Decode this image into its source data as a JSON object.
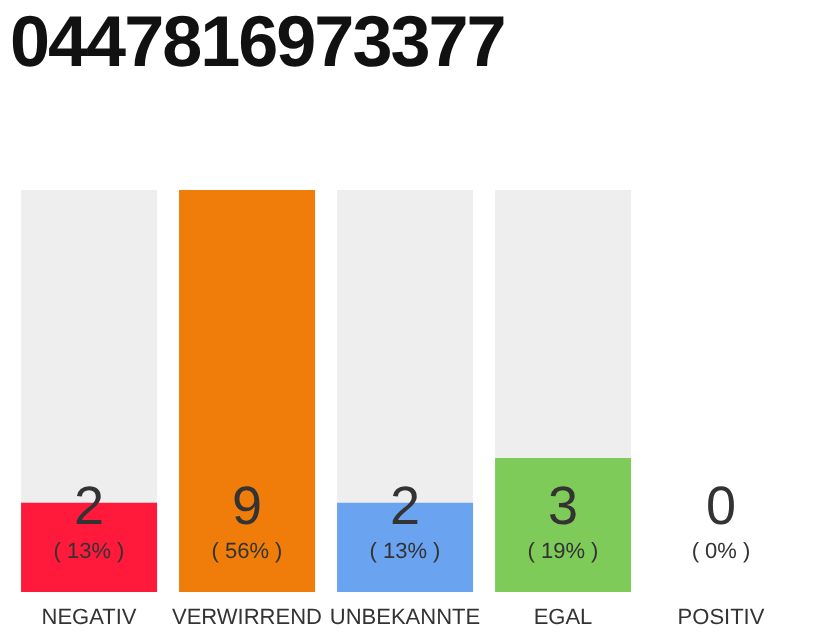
{
  "chart_data": {
    "type": "bar",
    "title": "0447816973377",
    "categories": [
      "NEGATIV",
      "VERWIRREND",
      "UNBEKANNTE",
      "EGAL",
      "POSITIV"
    ],
    "values": [
      2,
      9,
      2,
      3,
      0
    ],
    "colors": [
      "#ff1a3c",
      "#f07d0a",
      "#6aa3f0",
      "#7ecb5a",
      "#cccccc"
    ],
    "data_labels": true,
    "annotations": [
      "( 13% )",
      "( 56% )",
      "( 13% )",
      "( 19% )",
      "( 0% )"
    ]
  }
}
